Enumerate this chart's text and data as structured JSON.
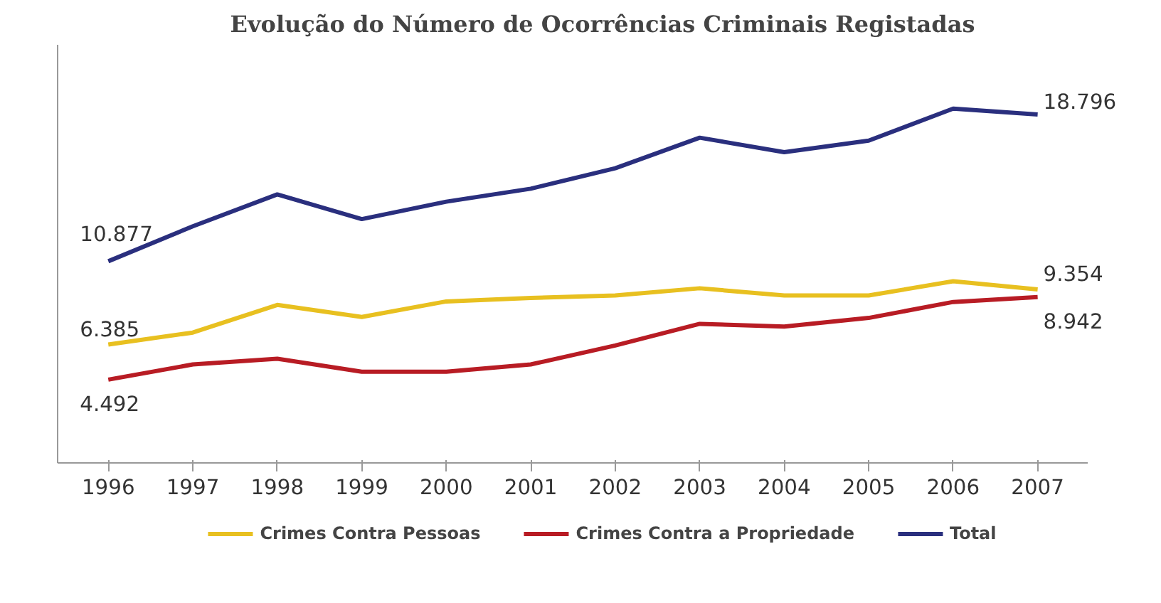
{
  "chart_data": {
    "type": "line",
    "title": "Evolução do Número de Ocorrências Criminais Registadas",
    "categories": [
      "1996",
      "1997",
      "1998",
      "1999",
      "2000",
      "2001",
      "2002",
      "2003",
      "2004",
      "2005",
      "2006",
      "2007"
    ],
    "series": [
      {
        "name": "Crimes Contra Pessoas",
        "color": "#e8c020",
        "values": [
          6385,
          7030,
          8520,
          7870,
          8710,
          8900,
          9030,
          9420,
          9030,
          9030,
          9800,
          9354
        ],
        "value_labels": [
          "6.385",
          null,
          null,
          null,
          null,
          null,
          null,
          null,
          null,
          null,
          null,
          "9.354"
        ]
      },
      {
        "name": "Crimes Contra a Propriedade",
        "color": "#b81c24",
        "values": [
          4492,
          5310,
          5620,
          4920,
          4920,
          5310,
          6330,
          7500,
          7350,
          7820,
          8680,
          8942
        ],
        "value_labels": [
          "4.492",
          null,
          null,
          null,
          null,
          null,
          null,
          null,
          null,
          null,
          null,
          "8.942"
        ]
      },
      {
        "name": "Total",
        "color": "#2a2f7e",
        "values": [
          10877,
          12760,
          14480,
          13150,
          14090,
          14790,
          15890,
          17540,
          16760,
          17380,
          19110,
          18796
        ],
        "value_labels": [
          "10.877",
          null,
          null,
          null,
          null,
          null,
          null,
          null,
          null,
          null,
          null,
          "18.796"
        ]
      }
    ],
    "legend": "bottom",
    "tick_labels": "x",
    "marker": "none",
    "line_style": "solid"
  }
}
